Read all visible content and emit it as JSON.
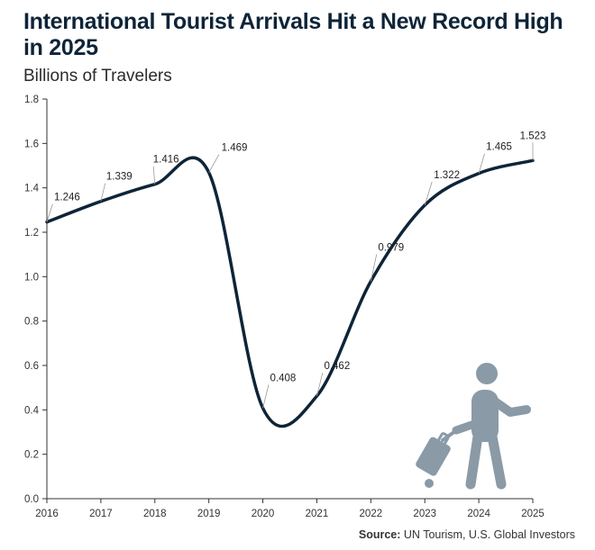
{
  "chart_data": {
    "type": "line",
    "title": "International Tourist Arrivals Hit a New Record High in 2025",
    "subtitle": "Billions of Travelers",
    "source_label": "Source:",
    "source_text": "UN Tourism, U.S. Global Investors",
    "x": [
      "2016",
      "2017",
      "2018",
      "2019",
      "2020",
      "2021",
      "2022",
      "2023",
      "2024",
      "2025"
    ],
    "series": [
      {
        "values": [
          1.246,
          1.339,
          1.416,
          1.469,
          0.408,
          0.462,
          0.979,
          1.322,
          1.465,
          1.523
        ]
      }
    ],
    "data_labels": [
      "1.246",
      "1.339",
      "1.416",
      "1.469",
      "0.408",
      "0.462",
      "0.979",
      "1.322",
      "1.465",
      "1.523"
    ],
    "y_ticks": [
      "0.0",
      "0.2",
      "0.4",
      "0.6",
      "0.8",
      "1.0",
      "1.2",
      "1.4",
      "1.6",
      "1.8"
    ],
    "ylim": [
      0,
      1.8
    ],
    "grid": false,
    "colors": {
      "line": "#0e2438",
      "axis": "#333333",
      "leader": "#999999",
      "icon": "#8a9aa6"
    },
    "icon": "traveler-with-suitcase-icon"
  }
}
